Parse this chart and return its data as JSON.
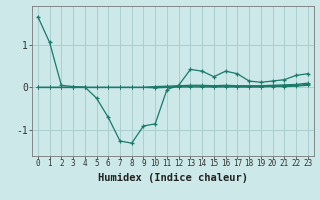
{
  "xlabel": "Humidex (Indice chaleur)",
  "ylabel": "",
  "xlim": [
    -0.5,
    23.5
  ],
  "ylim": [
    -1.6,
    1.9
  ],
  "background_color": "#cce8e8",
  "grid_color": "#aacfcf",
  "line_color": "#1a7a6a",
  "x": [
    0,
    1,
    2,
    3,
    4,
    5,
    6,
    7,
    8,
    9,
    10,
    11,
    12,
    13,
    14,
    15,
    16,
    17,
    18,
    19,
    20,
    21,
    22,
    23
  ],
  "line1": [
    1.65,
    1.05,
    0.05,
    0.02,
    0.01,
    -0.25,
    -0.7,
    -1.25,
    -1.3,
    -0.9,
    -0.85,
    -0.05,
    0.05,
    0.42,
    0.38,
    0.25,
    0.38,
    0.32,
    0.15,
    0.12,
    0.15,
    0.18,
    0.28,
    0.32
  ],
  "line2": [
    0.0,
    0.0,
    0.0,
    0.0,
    0.0,
    0.0,
    0.0,
    0.0,
    0.0,
    0.0,
    0.02,
    0.03,
    0.04,
    0.05,
    0.05,
    0.04,
    0.05,
    0.04,
    0.04,
    0.04,
    0.05,
    0.06,
    0.07,
    0.1
  ],
  "line3": [
    0.0,
    0.0,
    0.0,
    0.0,
    0.0,
    0.0,
    0.0,
    0.0,
    0.0,
    0.0,
    0.01,
    0.01,
    0.02,
    0.03,
    0.03,
    0.02,
    0.03,
    0.02,
    0.02,
    0.02,
    0.03,
    0.04,
    0.05,
    0.07
  ],
  "line4": [
    0.0,
    0.0,
    0.0,
    0.0,
    0.0,
    0.0,
    0.0,
    0.0,
    0.0,
    0.0,
    -0.01,
    0.0,
    0.01,
    0.01,
    0.01,
    0.01,
    0.01,
    0.01,
    0.01,
    0.01,
    0.02,
    0.02,
    0.03,
    0.05
  ],
  "yticks": [
    -1,
    0,
    1
  ],
  "xticks": [
    0,
    1,
    2,
    3,
    4,
    5,
    6,
    7,
    8,
    9,
    10,
    11,
    12,
    13,
    14,
    15,
    16,
    17,
    18,
    19,
    20,
    21,
    22,
    23
  ],
  "xtick_labels": [
    "0",
    "1",
    "2",
    "3",
    "4",
    "5",
    "6",
    "7",
    "8",
    "9",
    "10",
    "11",
    "12",
    "13",
    "14",
    "15",
    "16",
    "17",
    "18",
    "19",
    "20",
    "21",
    "22",
    "23"
  ]
}
